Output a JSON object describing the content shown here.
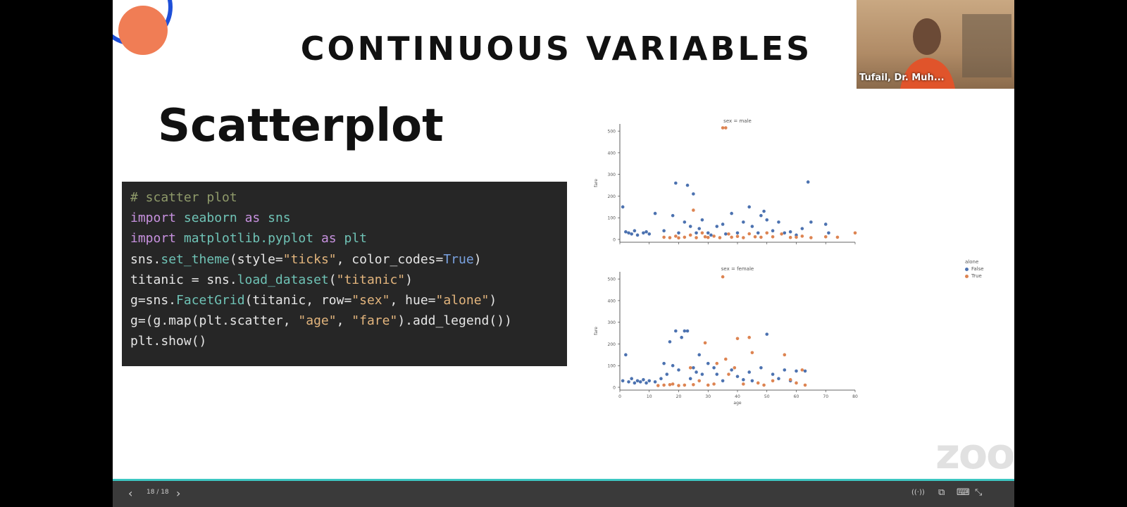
{
  "slide": {
    "title": "CONTINUOUS VARIABLES",
    "subtitle": "Scatterplot",
    "code": {
      "l1": "# scatter plot",
      "l2": {
        "kw1": "import",
        "mod": "seaborn",
        "kw2": "as",
        "alias": "sns"
      },
      "l3": {
        "kw1": "import",
        "mod": "matplotlib.pyplot",
        "kw2": "as",
        "alias": "plt"
      },
      "l4": {
        "a": "sns.",
        "fn": "set_theme",
        "b": "(style=",
        "s1": "\"ticks\"",
        "c": ", color_codes=",
        "bool": "True",
        "d": ")"
      },
      "l5": {
        "a": "titanic = sns.",
        "fn": "load_dataset",
        "b": "(",
        "s1": "\"titanic\"",
        "c": ")"
      },
      "l6": {
        "a": "g=sns.",
        "fn": "FacetGrid",
        "b": "(titanic, row=",
        "s1": "\"sex\"",
        "c": ", hue=",
        "s2": "\"alone\"",
        "d": ")"
      },
      "l7": {
        "a": "g=(g.map(plt.scatter, ",
        "s1": "\"age\"",
        "b": ", ",
        "s2": "\"fare\"",
        "c": ").add_legend())"
      },
      "l8": "plt.show()"
    }
  },
  "chart_data": {
    "type": "scatter",
    "xlabel": "age",
    "ylabel": "fare",
    "xlim": [
      0,
      80
    ],
    "ylim": [
      0,
      520
    ],
    "xticks": [
      0,
      10,
      20,
      30,
      40,
      50,
      60,
      70,
      80
    ],
    "yticks": [
      0,
      100,
      200,
      300,
      400,
      500
    ],
    "legend_title": "alone",
    "legend_position": "right",
    "hue_colors": {
      "False": "#4c72b0",
      "True": "#dd8452"
    },
    "panels": [
      {
        "title": "sex = male",
        "series": [
          {
            "name": "False",
            "points": [
              [
                1,
                150
              ],
              [
                2,
                35
              ],
              [
                3,
                30
              ],
              [
                4,
                25
              ],
              [
                5,
                40
              ],
              [
                6,
                20
              ],
              [
                8,
                30
              ],
              [
                9,
                35
              ],
              [
                10,
                25
              ],
              [
                12,
                120
              ],
              [
                15,
                40
              ],
              [
                18,
                110
              ],
              [
                19,
                260
              ],
              [
                20,
                30
              ],
              [
                22,
                80
              ],
              [
                23,
                250
              ],
              [
                24,
                60
              ],
              [
                25,
                210
              ],
              [
                26,
                30
              ],
              [
                27,
                50
              ],
              [
                28,
                90
              ],
              [
                30,
                30
              ],
              [
                31,
                20
              ],
              [
                33,
                60
              ],
              [
                35,
                70
              ],
              [
                36,
                25
              ],
              [
                38,
                120
              ],
              [
                40,
                30
              ],
              [
                42,
                80
              ],
              [
                44,
                150
              ],
              [
                45,
                60
              ],
              [
                47,
                30
              ],
              [
                48,
                110
              ],
              [
                49,
                130
              ],
              [
                50,
                90
              ],
              [
                52,
                40
              ],
              [
                54,
                80
              ],
              [
                56,
                30
              ],
              [
                58,
                35
              ],
              [
                60,
                20
              ],
              [
                62,
                50
              ],
              [
                64,
                265
              ],
              [
                65,
                80
              ],
              [
                70,
                70
              ],
              [
                71,
                30
              ]
            ]
          },
          {
            "name": "True",
            "points": [
              [
                15,
                10
              ],
              [
                17,
                8
              ],
              [
                19,
                15
              ],
              [
                20,
                7
              ],
              [
                22,
                10
              ],
              [
                24,
                20
              ],
              [
                25,
                135
              ],
              [
                26,
                8
              ],
              [
                28,
                30
              ],
              [
                29,
                12
              ],
              [
                30,
                9
              ],
              [
                32,
                15
              ],
              [
                34,
                8
              ],
              [
                35,
                515
              ],
              [
                36,
                515
              ],
              [
                37,
                25
              ],
              [
                38,
                10
              ],
              [
                40,
                14
              ],
              [
                42,
                8
              ],
              [
                44,
                26
              ],
              [
                46,
                12
              ],
              [
                48,
                10
              ],
              [
                50,
                30
              ],
              [
                52,
                12
              ],
              [
                55,
                25
              ],
              [
                58,
                9
              ],
              [
                60,
                10
              ],
              [
                62,
                15
              ],
              [
                65,
                8
              ],
              [
                70,
                12
              ],
              [
                74,
                10
              ],
              [
                80,
                30
              ]
            ]
          }
        ]
      },
      {
        "title": "sex = female",
        "series": [
          {
            "name": "False",
            "points": [
              [
                1,
                30
              ],
              [
                2,
                150
              ],
              [
                3,
                25
              ],
              [
                4,
                40
              ],
              [
                5,
                20
              ],
              [
                6,
                30
              ],
              [
                7,
                25
              ],
              [
                8,
                35
              ],
              [
                9,
                20
              ],
              [
                10,
                30
              ],
              [
                12,
                25
              ],
              [
                14,
                40
              ],
              [
                15,
                110
              ],
              [
                16,
                60
              ],
              [
                17,
                210
              ],
              [
                18,
                100
              ],
              [
                19,
                260
              ],
              [
                20,
                80
              ],
              [
                21,
                230
              ],
              [
                22,
                260
              ],
              [
                23,
                260
              ],
              [
                24,
                40
              ],
              [
                25,
                90
              ],
              [
                26,
                70
              ],
              [
                27,
                150
              ],
              [
                28,
                60
              ],
              [
                30,
                110
              ],
              [
                32,
                90
              ],
              [
                33,
                60
              ],
              [
                35,
                30
              ],
              [
                38,
                80
              ],
              [
                40,
                50
              ],
              [
                42,
                35
              ],
              [
                44,
                70
              ],
              [
                45,
                30
              ],
              [
                48,
                90
              ],
              [
                50,
                245
              ],
              [
                52,
                60
              ],
              [
                54,
                40
              ],
              [
                56,
                80
              ],
              [
                58,
                30
              ],
              [
                60,
                75
              ],
              [
                63,
                75
              ]
            ]
          },
          {
            "name": "True",
            "points": [
              [
                13,
                8
              ],
              [
                15,
                10
              ],
              [
                17,
                12
              ],
              [
                18,
                15
              ],
              [
                20,
                8
              ],
              [
                22,
                10
              ],
              [
                24,
                90
              ],
              [
                25,
                12
              ],
              [
                27,
                30
              ],
              [
                29,
                205
              ],
              [
                30,
                10
              ],
              [
                32,
                15
              ],
              [
                33,
                110
              ],
              [
                35,
                510
              ],
              [
                36,
                130
              ],
              [
                37,
                60
              ],
              [
                39,
                90
              ],
              [
                40,
                225
              ],
              [
                42,
                15
              ],
              [
                44,
                230
              ],
              [
                45,
                160
              ],
              [
                47,
                20
              ],
              [
                49,
                10
              ],
              [
                52,
                30
              ],
              [
                56,
                150
              ],
              [
                58,
                35
              ],
              [
                60,
                20
              ],
              [
                62,
                80
              ],
              [
                63,
                10
              ]
            ]
          }
        ]
      }
    ]
  },
  "video": {
    "participant_name": "Tufail, Dr. Muh..."
  },
  "watermark": "zoom",
  "toolbar": {
    "page_counter": "18 / 18",
    "prev_glyph": "‹",
    "next_glyph": "›",
    "audio_icon": "((·))",
    "window_icon": "⧉",
    "keyboard_icon": "⌨",
    "collapse_icon": "⤡"
  }
}
